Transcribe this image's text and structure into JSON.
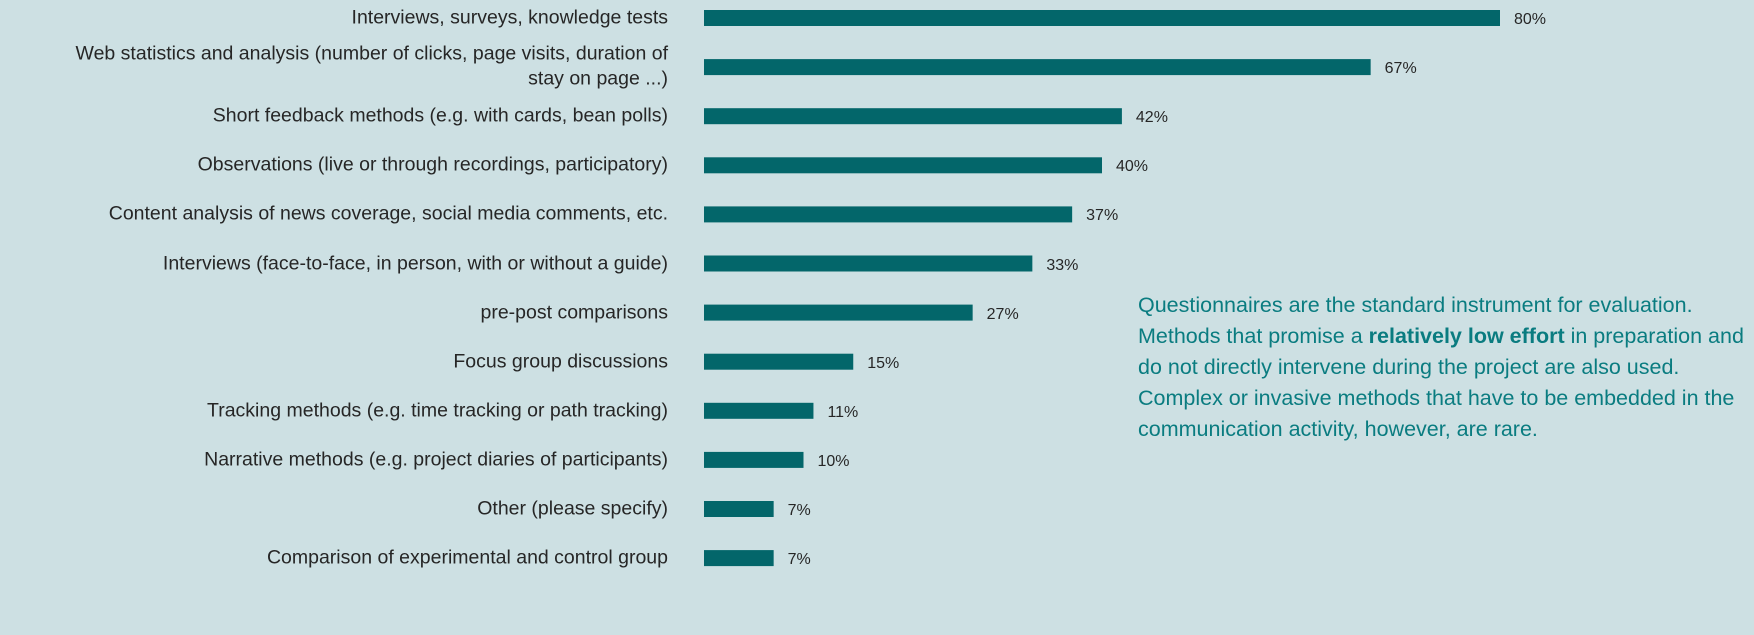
{
  "chart_data": {
    "type": "bar",
    "orientation": "horizontal",
    "categories": [
      "Interviews, surveys, knowledge tests",
      "Web statistics and analysis (number of clicks, page visits, duration of\nstay on page ...)",
      "Short feedback methods (e.g. with cards, bean polls)",
      "Observations (live or through recordings, participatory)",
      "Content analysis of news coverage, social media comments, etc.",
      "Interviews (face-to-face, in person, with or without a guide)",
      "pre-post comparisons",
      "Focus group discussions",
      "Tracking methods (e.g. time tracking or path tracking)",
      "Narrative methods (e.g. project diaries of participants)",
      "Other (please specify)",
      "Comparison of experimental and control group"
    ],
    "values": [
      80,
      67,
      42,
      40,
      37,
      33,
      27,
      15,
      11,
      10,
      7,
      7
    ],
    "value_labels": [
      "80%",
      "67%",
      "42%",
      "40%",
      "37%",
      "33%",
      "27%",
      "15%",
      "11%",
      "10%",
      "7%",
      "7%"
    ],
    "color": "#03666a",
    "annotation": [
      "Questionnaires are the standard instrument for evaluation. Methods that promise a ",
      "relatively low effort",
      " in preparation and do not directly intervene during the project are also used. Complex or invasive methods that have to be embedded in the communication activity, however, are rare."
    ]
  }
}
